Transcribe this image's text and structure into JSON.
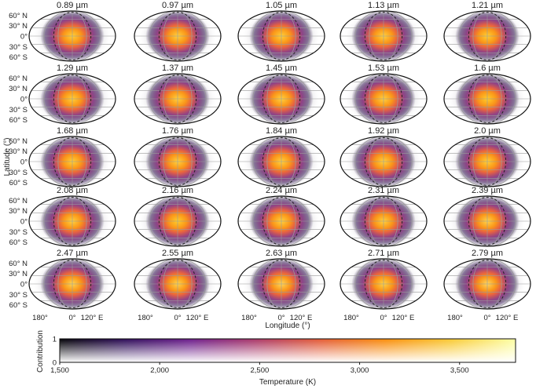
{
  "chart_data": {
    "type": "heatmap",
    "projection": "Robinson-like elliptical map",
    "panels": [
      {
        "wavelength": "0.89 µm",
        "hot": 0.8
      },
      {
        "wavelength": "0.97 µm",
        "hot": 0.82
      },
      {
        "wavelength": "1.05 µm",
        "hot": 0.8
      },
      {
        "wavelength": "1.13 µm",
        "hot": 0.82
      },
      {
        "wavelength": "1.21 µm",
        "hot": 0.78
      },
      {
        "wavelength": "1.29 µm",
        "hot": 0.8
      },
      {
        "wavelength": "1.37 µm",
        "hot": 0.82
      },
      {
        "wavelength": "1.45 µm",
        "hot": 0.82
      },
      {
        "wavelength": "1.53 µm",
        "hot": 0.82
      },
      {
        "wavelength": "1.6 µm",
        "hot": 0.76
      },
      {
        "wavelength": "1.68 µm",
        "hot": 0.8
      },
      {
        "wavelength": "1.76 µm",
        "hot": 0.82
      },
      {
        "wavelength": "1.84 µm",
        "hot": 0.82
      },
      {
        "wavelength": "1.92 µm",
        "hot": 0.82
      },
      {
        "wavelength": "2.0 µm",
        "hot": 0.8
      },
      {
        "wavelength": "2.08 µm",
        "hot": 0.82
      },
      {
        "wavelength": "2.16 µm",
        "hot": 0.76
      },
      {
        "wavelength": "2.24 µm",
        "hot": 0.82
      },
      {
        "wavelength": "2.31 µm",
        "hot": 0.82
      },
      {
        "wavelength": "2.39 µm",
        "hot": 0.86
      },
      {
        "wavelength": "2.47 µm",
        "hot": 0.88
      },
      {
        "wavelength": "2.55 µm",
        "hot": 0.86
      },
      {
        "wavelength": "2.63 µm",
        "hot": 0.9
      },
      {
        "wavelength": "2.71 µm",
        "hot": 0.84
      },
      {
        "wavelength": "2.79 µm",
        "hot": 0.92
      }
    ],
    "lat_ticks": [
      "60° N",
      "30° N",
      "0°",
      "30° S",
      "60° S"
    ],
    "lon_ticks": [
      "180°",
      "0°",
      "120° E"
    ],
    "xlabel": "Longitude (°)",
    "ylabel": "Latitude (°)",
    "colorbar": {
      "xlabel": "Temperature (K)",
      "ylabel": "Contribution",
      "xticks": [
        "1,500",
        "2,000",
        "2,500",
        "3,000",
        "3,500"
      ],
      "yticks": [
        "0",
        "1"
      ],
      "xrange": [
        1500,
        3780
      ],
      "colormap": [
        "#000004",
        "#2c0b57",
        "#6a1b8a",
        "#a83567",
        "#e35933",
        "#f98c0a",
        "#f9c932",
        "#fcffa4"
      ]
    },
    "grid": true
  }
}
